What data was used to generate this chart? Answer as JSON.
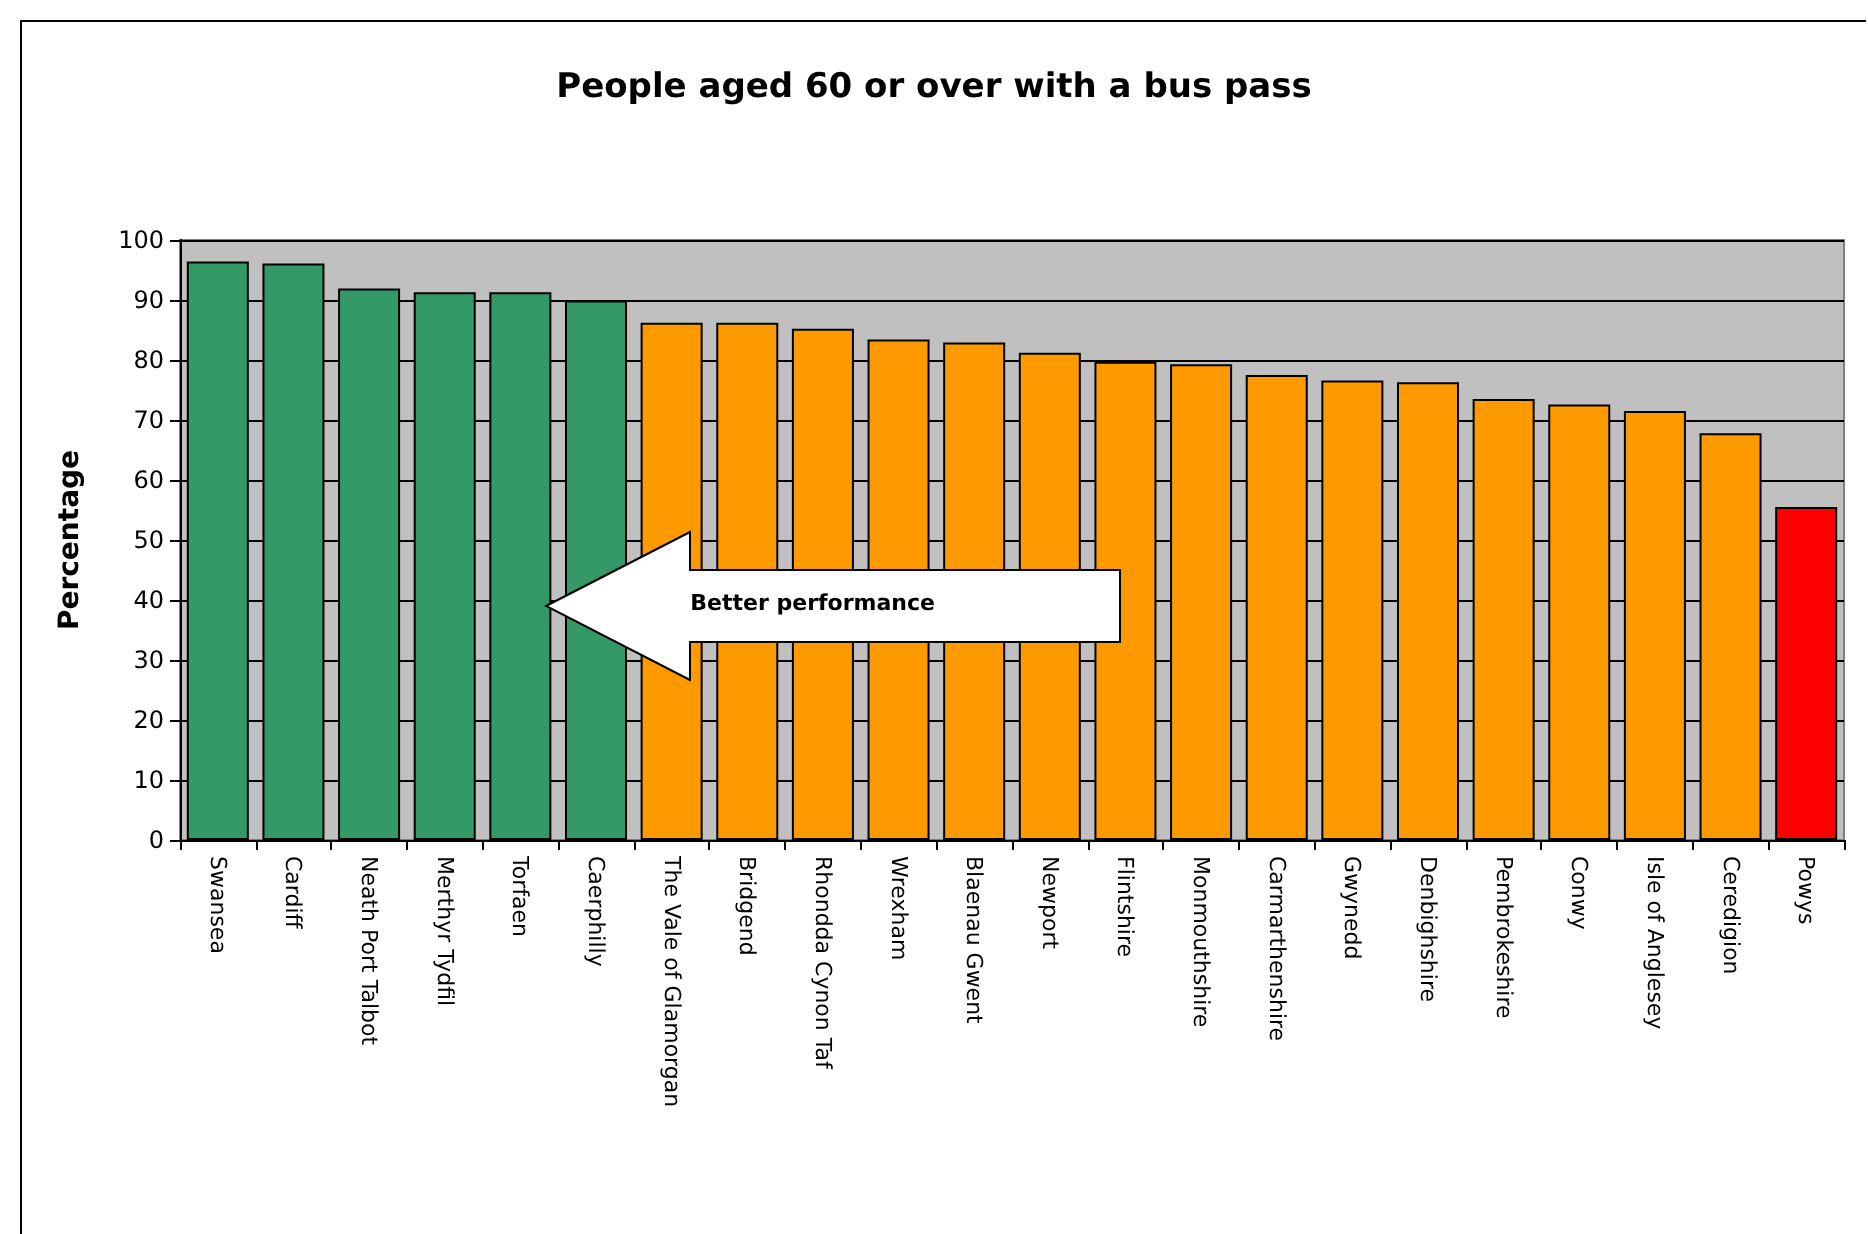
{
  "chart_data": {
    "type": "bar",
    "title": "People aged 60 or over with a bus pass",
    "ylabel": "Percentage",
    "categories": [
      "Swansea",
      "Cardiff",
      "Neath Port Talbot",
      "Merthyr Tydfil",
      "Torfaen",
      "Caerphilly",
      "The Vale of Glamorgan",
      "Bridgend",
      "Rhondda Cynon Taf",
      "Wrexham",
      "Blaenau Gwent",
      "Newport",
      "Flintshire",
      "Monmouthshire",
      "Carmarthenshire",
      "Gwynedd",
      "Denbighshire",
      "Pembrokeshire",
      "Conwy",
      "Isle of Anglesey",
      "Ceredigion",
      "Powys"
    ],
    "values": [
      96.4,
      96.1,
      91.9,
      91.3,
      91.3,
      89.9,
      86.2,
      86.2,
      85.2,
      83.4,
      82.9,
      81.2,
      79.7,
      79.3,
      77.5,
      76.6,
      76.3,
      73.5,
      72.6,
      71.5,
      67.8,
      55.5
    ],
    "colors": [
      "#339966",
      "#339966",
      "#339966",
      "#339966",
      "#339966",
      "#339966",
      "#ff9900",
      "#ff9900",
      "#ff9900",
      "#ff9900",
      "#ff9900",
      "#ff9900",
      "#ff9900",
      "#ff9900",
      "#ff9900",
      "#ff9900",
      "#ff9900",
      "#ff9900",
      "#ff9900",
      "#ff9900",
      "#ff9900",
      "#ff0000"
    ],
    "ylim": [
      0,
      100
    ],
    "yticks": [
      0,
      10,
      20,
      30,
      40,
      50,
      60,
      70,
      80,
      90,
      100
    ],
    "grid": "y",
    "annotations": [
      "Better performance"
    ]
  }
}
